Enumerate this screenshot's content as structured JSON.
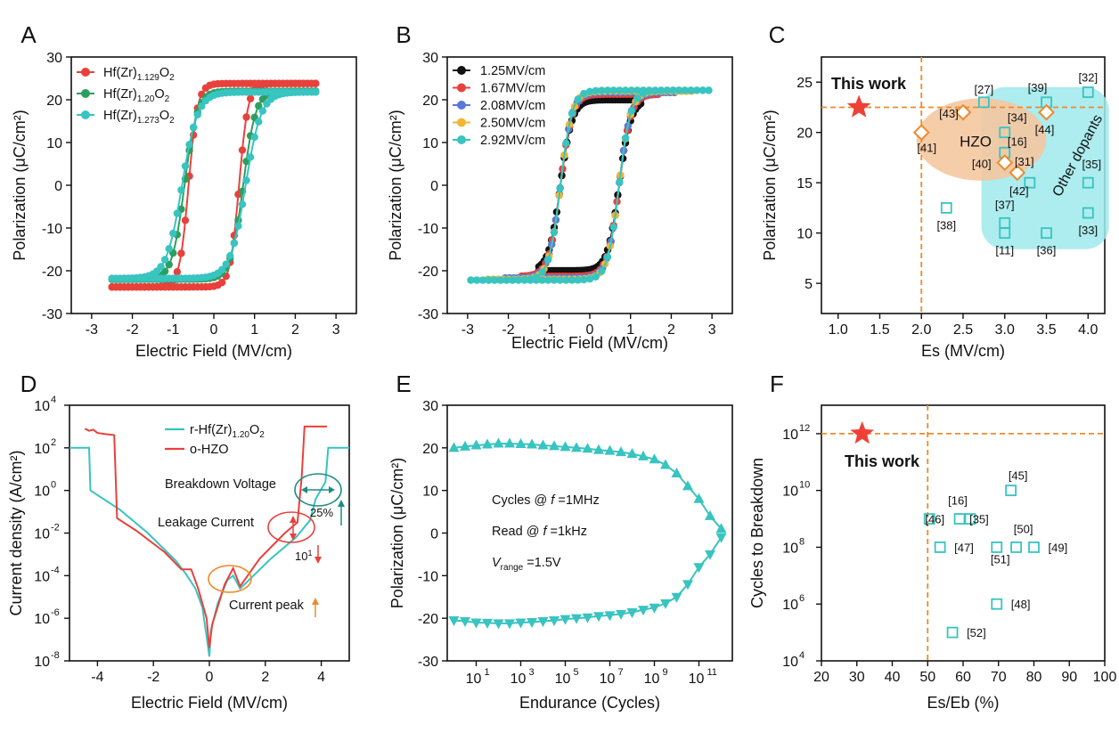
{
  "colors": {
    "red": "#e8413c",
    "green": "#2e9e5e",
    "teal": "#38c4c0",
    "black": "#111111",
    "blue": "#5a78d8",
    "yellow": "#f0b733",
    "orange": "#ef8a2c",
    "orange_dark": "#e07e1e",
    "teal_dark": "#1e8c84",
    "hzo_fill": "#f5c8a0",
    "dop_fill": "#9fe9ec",
    "star": "#ef4038"
  },
  "chart_data": [
    {
      "panel": "A",
      "type": "line",
      "xlabel": "Electric Field (MV/cm)",
      "ylabel": "Polarization (μC/cm²)",
      "xlim": [
        -3.5,
        3.5
      ],
      "ylim": [
        -30,
        30
      ],
      "xticks": [
        -3,
        -2,
        -1,
        0,
        1,
        2,
        3
      ],
      "yticks": [
        -30,
        -20,
        -10,
        0,
        10,
        20,
        30
      ],
      "legend_placement": "top-left",
      "legend": [
        {
          "label": "Hf(Zr)",
          "sub1": "1.129",
          "mid": "O",
          "sub2": "2"
        },
        {
          "label": "Hf(Zr)",
          "sub1": "1.20",
          "mid": "O",
          "sub2": "2"
        },
        {
          "label": "Hf(Zr)",
          "sub1": "1.273",
          "mid": "O",
          "sub2": "2"
        }
      ],
      "series": [
        {
          "color": "red",
          "x_range": [
            -2.5,
            2.5
          ],
          "ps": 23.8,
          "ec": 0.62,
          "k": 9
        },
        {
          "color": "green",
          "x_range": [
            -2.5,
            2.5
          ],
          "ps": 22.0,
          "ec": 0.72,
          "k": 6.5
        },
        {
          "color": "teal",
          "x_range": [
            -2.5,
            2.5
          ],
          "ps": 21.8,
          "ec": 0.78,
          "k": 5.2
        }
      ]
    },
    {
      "panel": "B",
      "type": "line",
      "xlabel": "Electric Field (MV/cm)",
      "ylabel": "Polarization (μC/cm²)",
      "xlim": [
        -3.5,
        3.5
      ],
      "ylim": [
        -30,
        30
      ],
      "xticks": [
        -3,
        -2,
        -1,
        0,
        1,
        2,
        3
      ],
      "yticks": [
        -30,
        -20,
        -10,
        0,
        10,
        20,
        30
      ],
      "legend_placement": "top-left",
      "series": [
        {
          "name": "1.25MV/cm",
          "color": "black",
          "emax": 1.25,
          "ps": 20.0
        },
        {
          "name": "1.67MV/cm",
          "color": "red",
          "emax": 1.67,
          "ps": 21.3
        },
        {
          "name": "2.08MV/cm",
          "color": "blue",
          "emax": 2.08,
          "ps": 21.7
        },
        {
          "name": "2.50MV/cm",
          "color": "yellow",
          "emax": 2.5,
          "ps": 22.0
        },
        {
          "name": "2.92MV/cm",
          "color": "teal",
          "emax": 2.92,
          "ps": 22.2
        }
      ]
    },
    {
      "panel": "C",
      "type": "scatter",
      "xlabel": "Es (MV/cm)",
      "ylabel": "Polarization (μC/cm²)",
      "xlim": [
        0.8,
        4.2
      ],
      "ylim": [
        2,
        27.5
      ],
      "xticks": [
        1.0,
        1.5,
        2.0,
        2.5,
        3.0,
        3.5,
        4.0
      ],
      "yticks": [
        5,
        10,
        15,
        20,
        25
      ],
      "this_work": {
        "x": 1.25,
        "y": 22.5,
        "label": "This work"
      },
      "hzo_label": "HZO",
      "dopants_label": "Other dopants",
      "hzo_points": [
        {
          "x": 2.0,
          "y": 20.0,
          "ref": "[41]"
        },
        {
          "x": 2.5,
          "y": 22.0,
          "ref": "[43]"
        },
        {
          "x": 3.5,
          "y": 22.0,
          "ref": "[44]"
        },
        {
          "x": 3.0,
          "y": 17.0,
          "ref": "[40]"
        },
        {
          "x": 3.15,
          "y": 16.0,
          "ref": "[31]"
        }
      ],
      "dopant_points": [
        {
          "x": 2.75,
          "y": 23.0,
          "ref": "[27]"
        },
        {
          "x": 3.5,
          "y": 23.0,
          "ref": "[39]"
        },
        {
          "x": 4.0,
          "y": 24.0,
          "ref": "[32]"
        },
        {
          "x": 3.0,
          "y": 20.0,
          "ref": "[34]"
        },
        {
          "x": 3.0,
          "y": 18.0,
          "ref": "[16]"
        },
        {
          "x": 3.3,
          "y": 15.0,
          "ref": "[42]"
        },
        {
          "x": 4.0,
          "y": 15.0,
          "ref": "[35]"
        },
        {
          "x": 2.3,
          "y": 12.5,
          "ref": "[38]"
        },
        {
          "x": 3.0,
          "y": 11.0,
          "ref": "[37]"
        },
        {
          "x": 3.0,
          "y": 10.0,
          "ref": "[11]"
        },
        {
          "x": 3.5,
          "y": 10.0,
          "ref": "[36]"
        },
        {
          "x": 4.0,
          "y": 12.0,
          "ref": "[33]"
        }
      ]
    },
    {
      "panel": "D",
      "type": "line",
      "xlabel": "Electric Field (MV/cm)",
      "ylabel": "Current density (A/cm²)",
      "xlim": [
        -5,
        5
      ],
      "ylim_log10": [
        -8,
        4
      ],
      "xticks": [
        -4,
        -2,
        0,
        2,
        4
      ],
      "yticks_log10": [
        -8,
        -6,
        -4,
        -2,
        0,
        2,
        4
      ],
      "legend_placement": "top-right",
      "legend": [
        {
          "label": "r-Hf(Zr)",
          "sub1": "1.20",
          "mid": "O",
          "sub2": "2",
          "color": "teal"
        },
        {
          "label": "o-HZO",
          "color": "red"
        }
      ],
      "annotations": {
        "breakdown": "Breakdown Voltage",
        "leakage": "Leakage Current",
        "peak": "Current peak",
        "pct": "25%",
        "decade_base": "10",
        "decade_exp": "1"
      },
      "series": [
        {
          "name": "r-Hf(Zr)1.20O2",
          "color": "teal",
          "points": [
            [
              -5,
              2
            ],
            [
              -4.3,
              2
            ],
            [
              -4.25,
              0
            ],
            [
              -3.2,
              -0.9
            ],
            [
              -2.2,
              -2
            ],
            [
              -1.2,
              -3.3
            ],
            [
              -0.85,
              -3.9
            ],
            [
              -0.5,
              -4.6
            ],
            [
              -0.25,
              -5.5
            ],
            [
              -0.05,
              -7.3
            ],
            [
              0,
              -7.8
            ],
            [
              0.05,
              -6.6
            ],
            [
              0.3,
              -5.3
            ],
            [
              0.65,
              -4.2
            ],
            [
              0.85,
              -4
            ],
            [
              1.1,
              -4.6
            ],
            [
              1.5,
              -4.1
            ],
            [
              2.2,
              -3.2
            ],
            [
              3.1,
              -2.2
            ],
            [
              3.6,
              -1.4
            ],
            [
              3.8,
              -0.4
            ],
            [
              4.15,
              0.4
            ],
            [
              4.25,
              2
            ],
            [
              5,
              2
            ]
          ]
        },
        {
          "name": "o-HZO",
          "color": "red",
          "points": [
            [
              -4.45,
              2.9
            ],
            [
              -4.3,
              2.8
            ],
            [
              -4.15,
              2.85
            ],
            [
              -4.0,
              2.7
            ],
            [
              -3.75,
              2.65
            ],
            [
              -3.4,
              2.6
            ],
            [
              -3.3,
              -1.3
            ],
            [
              -2.6,
              -1.9
            ],
            [
              -1.6,
              -2.9
            ],
            [
              -1.0,
              -3.7
            ],
            [
              -0.65,
              -3.7
            ],
            [
              -0.4,
              -4.6
            ],
            [
              -0.1,
              -6.0
            ],
            [
              0,
              -7.4
            ],
            [
              0.1,
              -6.3
            ],
            [
              0.55,
              -4.4
            ],
            [
              0.85,
              -3.65
            ],
            [
              1.1,
              -4.5
            ],
            [
              1.8,
              -3.2
            ],
            [
              2.7,
              -2.0
            ],
            [
              3.15,
              -1.5
            ],
            [
              3.3,
              0.6
            ],
            [
              3.4,
              3
            ],
            [
              4.2,
              3
            ]
          ]
        }
      ]
    },
    {
      "panel": "E",
      "type": "line",
      "xlabel": "Endurance (Cycles)",
      "ylabel": "Polarization (μC/cm²)",
      "xlim_log10": [
        -0.3,
        12.5
      ],
      "ylim": [
        -30,
        30
      ],
      "xticks_log10": [
        1,
        3,
        5,
        7,
        9,
        11
      ],
      "yticks": [
        -30,
        -20,
        -10,
        0,
        10,
        20,
        30
      ],
      "text_lines": [
        {
          "pre": "Cycles @ ",
          "italic": "f",
          "post": " =1MHz"
        },
        {
          "pre": "Read @ ",
          "italic": "f",
          "post": " =1kHz"
        },
        {
          "italic": "V",
          "sub": "range",
          "post": " =1.5V"
        }
      ],
      "series": [
        {
          "name": "P+",
          "color": "teal",
          "marker": "triangle-up",
          "points": [
            [
              0,
              20
            ],
            [
              0.5,
              20.3
            ],
            [
              1,
              20.6
            ],
            [
              1.5,
              20.8
            ],
            [
              2,
              21
            ],
            [
              2.5,
              21
            ],
            [
              3,
              20.9
            ],
            [
              3.5,
              20.8
            ],
            [
              4,
              20.6
            ],
            [
              4.5,
              20.4
            ],
            [
              5,
              20.2
            ],
            [
              5.5,
              20
            ],
            [
              6,
              19.8
            ],
            [
              6.5,
              19.5
            ],
            [
              7,
              19.3
            ],
            [
              7.5,
              19
            ],
            [
              8,
              18.6
            ],
            [
              8.5,
              18
            ],
            [
              9,
              17.3
            ],
            [
              9.5,
              16
            ],
            [
              10,
              14
            ],
            [
              10.5,
              11
            ],
            [
              11,
              8
            ],
            [
              11.5,
              4
            ],
            [
              12,
              1
            ]
          ]
        },
        {
          "name": "P-",
          "color": "teal",
          "marker": "triangle-down",
          "points": [
            [
              0,
              -20.5
            ],
            [
              0.5,
              -20.7
            ],
            [
              1,
              -21
            ],
            [
              1.5,
              -21.1
            ],
            [
              2,
              -21.2
            ],
            [
              2.5,
              -21.2
            ],
            [
              3,
              -21
            ],
            [
              3.5,
              -20.9
            ],
            [
              4,
              -20.7
            ],
            [
              4.5,
              -20.5
            ],
            [
              5,
              -20.2
            ],
            [
              5.5,
              -20
            ],
            [
              6,
              -19.8
            ],
            [
              6.5,
              -19.5
            ],
            [
              7,
              -19.3
            ],
            [
              7.5,
              -19
            ],
            [
              8,
              -18.6
            ],
            [
              8.5,
              -18
            ],
            [
              9,
              -17.5
            ],
            [
              9.5,
              -16.5
            ],
            [
              10,
              -15
            ],
            [
              10.5,
              -12
            ],
            [
              11,
              -8
            ],
            [
              11.5,
              -5
            ],
            [
              12,
              -1
            ]
          ]
        }
      ]
    },
    {
      "panel": "F",
      "type": "scatter",
      "xlabel": "Es/Eb (%)",
      "ylabel": "Cycles to Breakdown",
      "xlim": [
        20,
        100
      ],
      "ylim_log10": [
        4,
        13
      ],
      "xticks": [
        20,
        30,
        40,
        50,
        60,
        70,
        80,
        90,
        100
      ],
      "yticks_log10": [
        4,
        6,
        8,
        10,
        12
      ],
      "this_work": {
        "x": 31.5,
        "log10y": 12,
        "label": "This work"
      },
      "points": [
        {
          "x": 73.5,
          "log10y": 10.0,
          "ref": "[45]"
        },
        {
          "x": 50.5,
          "log10y": 9.0,
          "ref": "[46]"
        },
        {
          "x": 59.0,
          "log10y": 9.0,
          "ref": "[16]"
        },
        {
          "x": 62.0,
          "log10y": 9.0,
          "ref": "[35]"
        },
        {
          "x": 53.5,
          "log10y": 8.0,
          "ref": "[47]"
        },
        {
          "x": 69.5,
          "log10y": 8.0,
          "ref": "[51]"
        },
        {
          "x": 75.0,
          "log10y": 8.0,
          "ref": "[50]"
        },
        {
          "x": 80.0,
          "log10y": 8.0,
          "ref": "[49]"
        },
        {
          "x": 69.5,
          "log10y": 6.0,
          "ref": "[48]"
        },
        {
          "x": 57.0,
          "log10y": 5.0,
          "ref": "[52]"
        }
      ]
    }
  ],
  "panel_labels": [
    "A",
    "B",
    "C",
    "D",
    "E",
    "F"
  ]
}
